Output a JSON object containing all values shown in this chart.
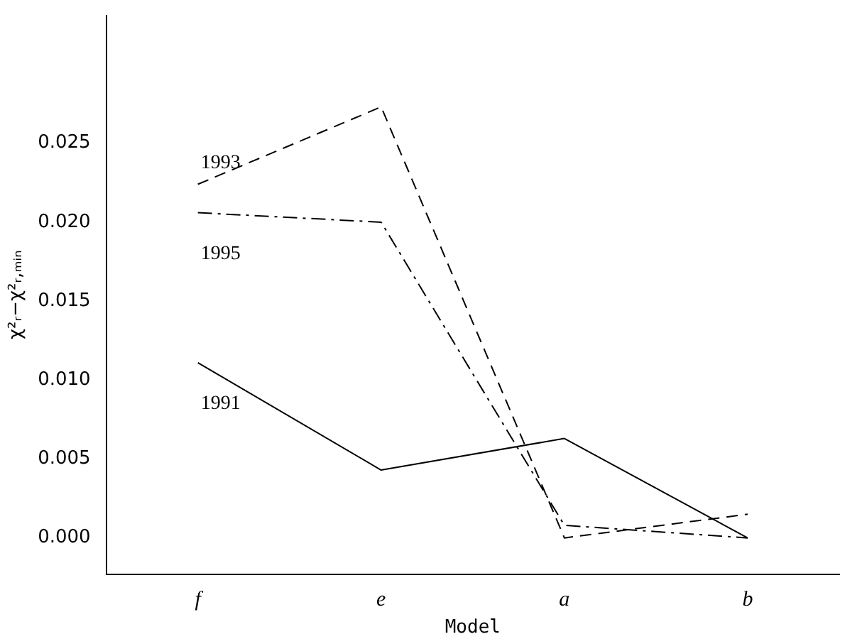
{
  "chart_data": {
    "type": "line",
    "xlabel": "Model",
    "ylabel": "χ²ᵣ−χ²ᵣ,ₘᵢₙ",
    "categories": [
      "f",
      "e",
      "a",
      "b"
    ],
    "ylim": [
      -0.0023,
      0.0331
    ],
    "yticks": [
      {
        "value": 0,
        "label": "0.000"
      },
      {
        "value": 0.005,
        "label": "0.005"
      },
      {
        "value": 0.01,
        "label": "0.010"
      },
      {
        "value": 0.015,
        "label": "0.015"
      },
      {
        "value": 0.02,
        "label": "0.020"
      },
      {
        "value": 0.025,
        "label": "0.025"
      }
    ],
    "grid": false,
    "legend": false,
    "marker": "none",
    "series": [
      {
        "name": "1991",
        "color": "#000000",
        "line_style": "solid",
        "values": [
          0.0111,
          0.0043,
          0.0063,
          0.0
        ]
      },
      {
        "name": "1993",
        "color": "#000000",
        "line_style": "dashed",
        "values": [
          0.0224,
          0.0273,
          0.0,
          0.0015
        ]
      },
      {
        "name": "1995",
        "color": "#000000",
        "line_style": "dashdot",
        "values": [
          0.0206,
          0.02,
          0.0008,
          0.0
        ]
      }
    ]
  }
}
